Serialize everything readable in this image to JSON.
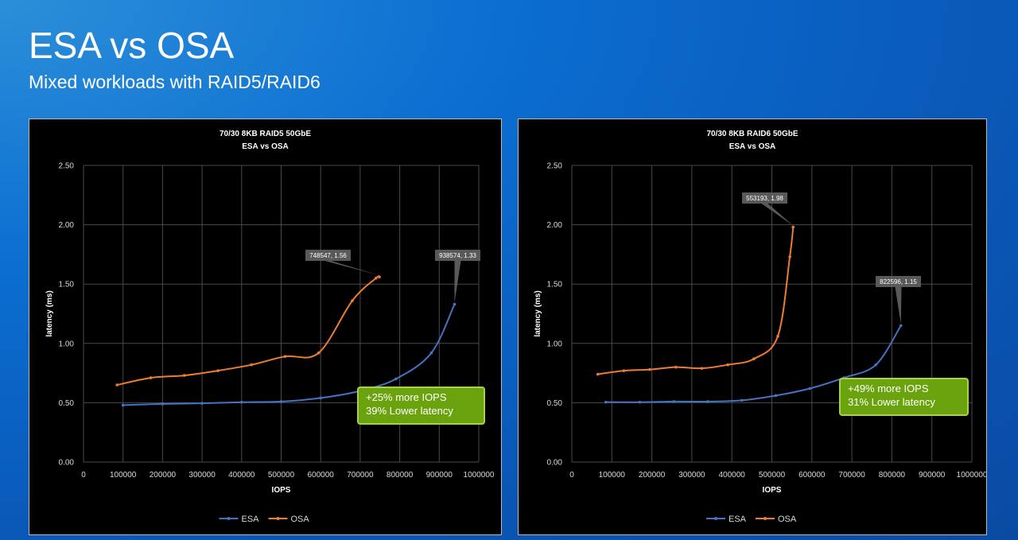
{
  "slide": {
    "title": "ESA vs OSA",
    "subtitle": "Mixed workloads with RAID5/RAID6"
  },
  "colors": {
    "esa": "#4472c4",
    "osa": "#ed7d31",
    "callout": "#6aa30d"
  },
  "chart_data": [
    {
      "type": "line",
      "title": "70/30 8KB RAID5 50GbE",
      "subtitle": "ESA vs OSA",
      "xlabel": "IOPS",
      "ylabel": "latency (ms)",
      "xlim": [
        0,
        1000000
      ],
      "ylim": [
        0,
        2.5
      ],
      "x_ticks": [
        "0",
        "100000",
        "200000",
        "300000",
        "400000",
        "500000",
        "600000",
        "700000",
        "800000",
        "900000",
        "1000000"
      ],
      "y_ticks": [
        "0.00",
        "0.50",
        "1.00",
        "1.50",
        "2.00",
        "2.50"
      ],
      "grid": true,
      "legend_position": "bottom",
      "series": [
        {
          "name": "ESA",
          "x": [
            100000,
            200000,
            300000,
            400000,
            500000,
            600000,
            700000,
            790000,
            880000,
            938574
          ],
          "y": [
            0.48,
            0.49,
            0.495,
            0.505,
            0.51,
            0.54,
            0.6,
            0.7,
            0.92,
            1.33
          ]
        },
        {
          "name": "OSA",
          "x": [
            85000,
            170000,
            255000,
            340000,
            425000,
            510000,
            595000,
            680000,
            740000,
            748547
          ],
          "y": [
            0.65,
            0.71,
            0.73,
            0.77,
            0.82,
            0.89,
            0.92,
            1.36,
            1.55,
            1.56
          ]
        }
      ],
      "annotations": [
        {
          "text": "748547, 1.56",
          "x": 748547,
          "y": 1.56,
          "series": "OSA"
        },
        {
          "text": "938574, 1.33",
          "x": 938574,
          "y": 1.33,
          "series": "ESA"
        }
      ],
      "callout": [
        "+25% more IOPS",
        "39% Lower latency"
      ]
    },
    {
      "type": "line",
      "title": "70/30 8KB RAID6 50GbE",
      "subtitle": "ESA vs OSA",
      "xlabel": "IOPS",
      "ylabel": "latency (ms)",
      "xlim": [
        0,
        1000000
      ],
      "ylim": [
        0,
        2.5
      ],
      "x_ticks": [
        "0",
        "100000",
        "200000",
        "300000",
        "400000",
        "500000",
        "600000",
        "700000",
        "800000",
        "900000",
        "1000000"
      ],
      "y_ticks": [
        "0.00",
        "0.50",
        "1.00",
        "1.50",
        "2.00",
        "2.50"
      ],
      "grid": true,
      "legend_position": "bottom",
      "series": [
        {
          "name": "ESA",
          "x": [
            85000,
            170000,
            255000,
            340000,
            425000,
            510000,
            595000,
            680000,
            760000,
            822596
          ],
          "y": [
            0.505,
            0.505,
            0.51,
            0.51,
            0.52,
            0.56,
            0.62,
            0.71,
            0.82,
            1.15
          ]
        },
        {
          "name": "OSA",
          "x": [
            65000,
            130000,
            195000,
            260000,
            325000,
            390000,
            455000,
            515000,
            545000,
            553193
          ],
          "y": [
            0.74,
            0.77,
            0.78,
            0.8,
            0.79,
            0.82,
            0.87,
            1.06,
            1.73,
            1.98
          ]
        }
      ],
      "annotations": [
        {
          "text": "553193, 1.98",
          "x": 553193,
          "y": 1.98,
          "series": "OSA"
        },
        {
          "text": "822596, 1.15",
          "x": 822596,
          "y": 1.15,
          "series": "ESA"
        }
      ],
      "callout": [
        "+49% more IOPS",
        "31% Lower latency"
      ]
    }
  ]
}
